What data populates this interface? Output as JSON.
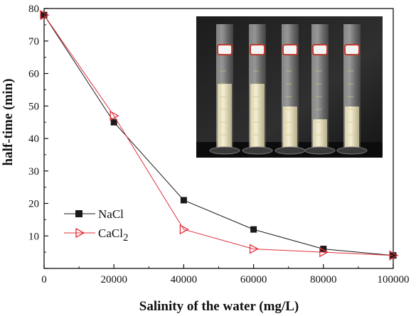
{
  "chart_data": {
    "type": "line",
    "title": "",
    "xlabel": "Salinity of the water (mg/L)",
    "ylabel": "half-time (min)",
    "xlim": [
      0,
      100000
    ],
    "ylim": [
      0,
      80
    ],
    "xticks": [
      0,
      20000,
      40000,
      60000,
      80000,
      100000
    ],
    "yticks": [
      10,
      20,
      30,
      40,
      50,
      60,
      70,
      80
    ],
    "grid": false,
    "legend_position": "bottom-left",
    "series": [
      {
        "name": "NaCl",
        "name_sub": "",
        "marker": "square",
        "color": "#1a1a1a",
        "x": [
          0,
          20000,
          40000,
          60000,
          80000,
          100000
        ],
        "y": [
          78,
          45,
          21,
          12,
          6,
          4
        ]
      },
      {
        "name": "CaCl",
        "name_sub": "2",
        "marker": "triangle-right",
        "color": "#e0303a",
        "x": [
          0,
          20000,
          40000,
          60000,
          80000,
          100000
        ],
        "y": [
          78,
          47,
          12,
          6,
          5,
          4
        ]
      }
    ],
    "inset": {
      "description_icon": "photo-of-graduated-cylinders",
      "cylinder_count": 5
    }
  }
}
